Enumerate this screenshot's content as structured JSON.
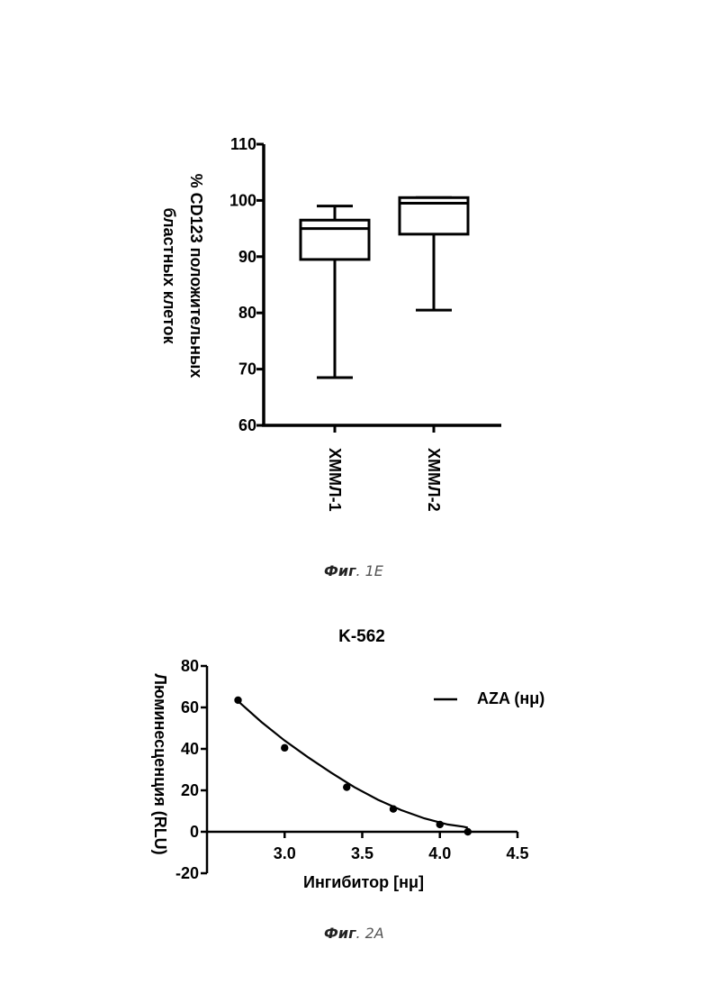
{
  "figures": [
    {
      "caption_bold": "Фиг",
      "caption_rest": ". 1E",
      "chart_data": {
        "type": "box",
        "ylabel_line1": "% CD123 положительных",
        "ylabel_line2": "бластных клеток",
        "ylim": [
          60,
          110
        ],
        "yticks": [
          60,
          70,
          80,
          90,
          100,
          110
        ],
        "categories": [
          "ХММЛ-1",
          "ХММЛ-2"
        ],
        "boxes": [
          {
            "min": 68.5,
            "q1": 89.5,
            "median": 95,
            "q3": 96.5,
            "max": 99
          },
          {
            "min": 80.5,
            "q1": 94,
            "median": 99.5,
            "q3": 100.5,
            "max": 100.5
          }
        ]
      }
    },
    {
      "caption_bold": "Фиг",
      "caption_rest": ". 2A",
      "chart_data": {
        "type": "scatter",
        "title": "K-562",
        "xlabel": "Ингибитор [нμ]",
        "ylabel": "Люминесценция (RLU)",
        "xlim": [
          2.5,
          4.5
        ],
        "ylim": [
          -20,
          80
        ],
        "xticks": [
          "3.0",
          "3.5",
          "4.0",
          "4.5"
        ],
        "yticks": [
          "-20",
          "0",
          "20",
          "40",
          "60",
          "80"
        ],
        "legend": "AZA (нμ)",
        "legend_position": "top-right",
        "series": [
          {
            "name": "AZA (нμ)",
            "points": [
              [
                2.7,
                63.5
              ],
              [
                3.0,
                40.5
              ],
              [
                3.4,
                21.5
              ],
              [
                3.7,
                11
              ],
              [
                4.0,
                3.5
              ],
              [
                4.18,
                0
              ]
            ],
            "fit": [
              [
                2.7,
                63
              ],
              [
                2.85,
                53
              ],
              [
                3.0,
                44
              ],
              [
                3.15,
                36
              ],
              [
                3.3,
                28.5
              ],
              [
                3.45,
                21.5
              ],
              [
                3.6,
                15.5
              ],
              [
                3.75,
                10.5
              ],
              [
                3.9,
                6.5
              ],
              [
                4.05,
                3.5
              ],
              [
                4.15,
                2.5
              ],
              [
                4.18,
                2
              ]
            ]
          }
        ]
      }
    }
  ]
}
